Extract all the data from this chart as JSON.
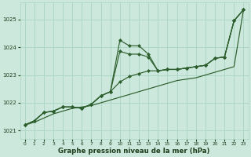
{
  "background_color": "#cce8dc",
  "grid_color": "#aad4c4",
  "line_color": "#2d5e2d",
  "marker_color": "#2d5e2d",
  "xlabel": "Graphe pression niveau de la mer (hPa)",
  "xlabel_color": "#1a3d1a",
  "tick_color": "#1a3d1a",
  "xlim": [
    -0.5,
    23.5
  ],
  "ylim": [
    1020.7,
    1025.6
  ],
  "yticks": [
    1021,
    1022,
    1023,
    1024,
    1025
  ],
  "xticks": [
    0,
    1,
    2,
    3,
    4,
    5,
    6,
    7,
    8,
    9,
    10,
    11,
    12,
    13,
    14,
    15,
    16,
    17,
    18,
    19,
    20,
    21,
    22,
    23
  ],
  "series": {
    "trend": [
      1021.2,
      1021.3,
      1021.45,
      1021.6,
      1021.7,
      1021.8,
      1021.85,
      1021.9,
      1022.0,
      1022.1,
      1022.2,
      1022.3,
      1022.4,
      1022.5,
      1022.6,
      1022.7,
      1022.8,
      1022.85,
      1022.9,
      1023.0,
      1023.1,
      1023.2,
      1023.3,
      1025.35
    ],
    "high": [
      1021.2,
      1021.35,
      1021.65,
      1021.7,
      1021.85,
      1021.85,
      1021.8,
      1021.95,
      1022.25,
      1022.4,
      1024.25,
      1024.05,
      1024.05,
      1023.75,
      1023.15,
      1023.2,
      1023.2,
      1023.25,
      1023.3,
      1023.35,
      1023.6,
      1023.65,
      1024.95,
      1025.35
    ],
    "mid": [
      1021.2,
      1021.35,
      1021.65,
      1021.7,
      1021.85,
      1021.85,
      1021.8,
      1021.95,
      1022.25,
      1022.4,
      1023.85,
      1023.75,
      1023.75,
      1023.65,
      1023.15,
      1023.2,
      1023.2,
      1023.25,
      1023.3,
      1023.35,
      1023.6,
      1023.65,
      1024.95,
      1025.35
    ],
    "low": [
      1021.2,
      1021.35,
      1021.65,
      1021.7,
      1021.85,
      1021.85,
      1021.8,
      1021.95,
      1022.25,
      1022.4,
      1022.75,
      1022.95,
      1023.05,
      1023.15,
      1023.15,
      1023.2,
      1023.2,
      1023.25,
      1023.3,
      1023.35,
      1023.6,
      1023.65,
      1024.95,
      1025.35
    ]
  }
}
